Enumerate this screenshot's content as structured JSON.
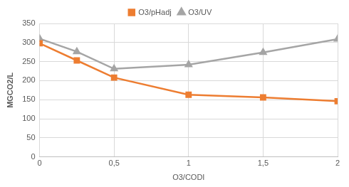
{
  "chart_data": {
    "type": "line",
    "x_label": "O3/CODI",
    "y_label": "MGCO2/L",
    "x": [
      0,
      0.25,
      0.5,
      1,
      1.5,
      2
    ],
    "series": [
      {
        "name": "O3/pHadj",
        "color": "#ed7d31",
        "marker": "square",
        "values": [
          298,
          253,
          208,
          163,
          156,
          146
        ]
      },
      {
        "name": "O3/UV",
        "color": "#a5a5a5",
        "marker": "triangle",
        "values": [
          310,
          276,
          231,
          242,
          274,
          309
        ]
      }
    ],
    "xlim": [
      0,
      2
    ],
    "xticks": [
      0,
      {
        "value": 0.5,
        "label": "0,5"
      },
      1,
      {
        "value": 1.5,
        "label": "1,5"
      },
      2
    ],
    "ylim": [
      0,
      350
    ],
    "yticks": [
      0,
      50,
      100,
      150,
      200,
      250,
      300,
      350
    ],
    "grid": true,
    "legend": "top"
  }
}
